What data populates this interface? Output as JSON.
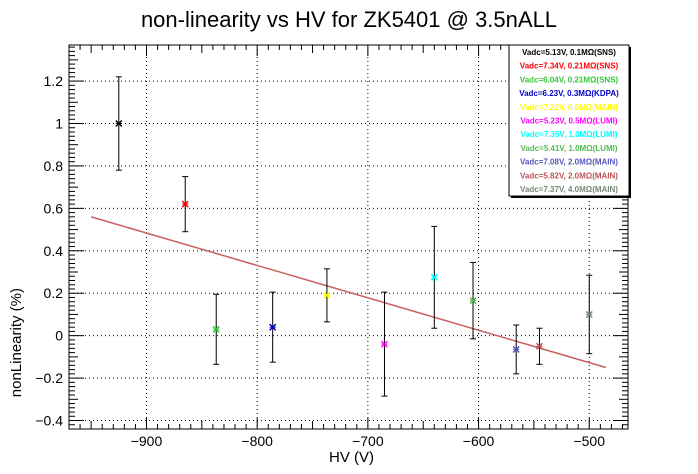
{
  "chart_data": {
    "type": "scatter",
    "title": "non-linearity vs HV for ZK5401 @ 3.5nALL",
    "xlabel": "HV (V)",
    "ylabel": "nonLinearity (%)",
    "xlim": [
      -970,
      -465
    ],
    "ylim": [
      -0.44,
      1.37
    ],
    "x_tick_labels": [
      "−900",
      "−800",
      "−700",
      "−600",
      "−500"
    ],
    "y_tick_labels": [
      "−0.4",
      "−0.2",
      "0",
      "0.2",
      "0.4",
      "0.6",
      "0.8",
      "1",
      "1.2"
    ],
    "grid": true,
    "legend_position": "top-right",
    "series": [
      {
        "name": "Vadc=5.13V, 0.1MΩ(SNS)",
        "color": "#000000",
        "x": -925,
        "y": 1.0,
        "yerr": 0.22
      },
      {
        "name": "Vadc=7.34V, 0.21MΩ(SNS)",
        "color": "#ff0000",
        "x": -865,
        "y": 0.62,
        "yerr": 0.13
      },
      {
        "name": "Vadc=6.04V, 0.21MΩ(SNS)",
        "color": "#33cc33",
        "x": -837,
        "y": 0.03,
        "yerr": 0.165
      },
      {
        "name": "Vadc=6.23V, 0.3MΩ(KDPA)",
        "color": "#0000cc",
        "x": -786,
        "y": 0.04,
        "yerr": 0.165
      },
      {
        "name": "Vadc=7.22V, 0.6MΩ(MAIN)",
        "color": "#ffff00",
        "x": -737,
        "y": 0.19,
        "yerr": 0.125
      },
      {
        "name": "Vadc=5.23V, 0.5MΩ(LUMI)",
        "color": "#ff00ff",
        "x": -685,
        "y": -0.04,
        "yerr": 0.245
      },
      {
        "name": "Vadc=7.35V, 1.0MΩ(LUMI)",
        "color": "#00ffff",
        "x": -640,
        "y": 0.275,
        "yerr": 0.24
      },
      {
        "name": "Vadc=5.41V, 1.0MΩ(LUMI)",
        "color": "#55bb55",
        "x": -605,
        "y": 0.165,
        "yerr": 0.18
      },
      {
        "name": "Vadc=7.08V, 2.0MΩ(MAIN)",
        "color": "#5555bb",
        "x": -566,
        "y": -0.065,
        "yerr": 0.115
      },
      {
        "name": "Vadc=5.82V, 2.0MΩ(MAIN)",
        "color": "#bb5555",
        "x": -545,
        "y": -0.05,
        "yerr": 0.085
      },
      {
        "name": "Vadc=7.37V, 4.0MΩ(MAIN)",
        "color": "#778877",
        "x": -500,
        "y": 0.1,
        "yerr": 0.185
      }
    ],
    "fit": {
      "color": "#c86060",
      "x": [
        -950,
        -485
      ],
      "y": [
        0.56,
        -0.15
      ]
    }
  }
}
